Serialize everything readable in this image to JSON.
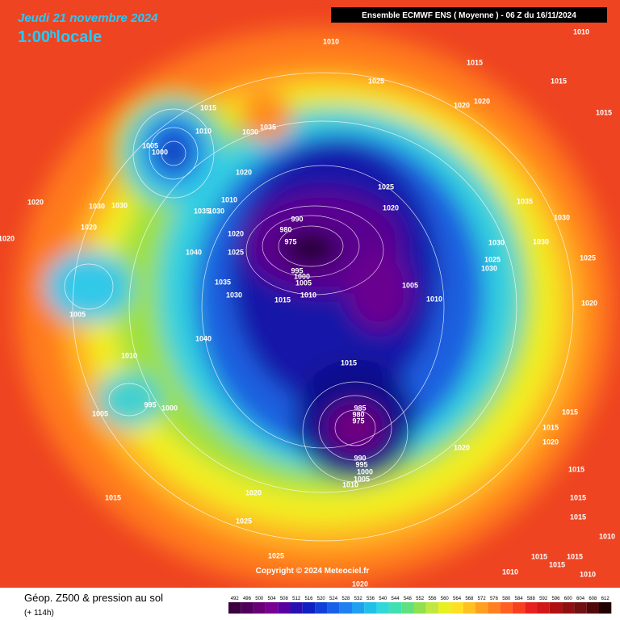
{
  "header": {
    "date": "Jeudi 21 novembre 2024",
    "time": "1:00ʰlocale",
    "run": "Ensemble ECMWF ENS  ( Moyenne )  -  06 Z du 16/11/2024"
  },
  "map": {
    "copyright": "Copyright © 2024 Meteociel.fr",
    "pressure_labels": [
      "1010",
      "1010",
      "1015",
      "1015",
      "1015",
      "1025",
      "1015",
      "1010",
      "1005",
      "1000",
      "1030",
      "1035",
      "1020",
      "1020",
      "1020",
      "1025",
      "1020",
      "1035",
      "1030",
      "1020",
      "1030",
      "1030",
      "1010",
      "1035",
      "1030",
      "1020",
      "1020",
      "990",
      "980",
      "975",
      "1020",
      "1025",
      "1040",
      "1030",
      "1030",
      "1025",
      "1025",
      "1030",
      "995",
      "1000",
      "1005",
      "1005",
      "1035",
      "1030",
      "1015",
      "1010",
      "1010",
      "1005",
      "1020",
      "1040",
      "1015",
      "1010",
      "995",
      "1000",
      "1005",
      "985",
      "980",
      "975",
      "1020",
      "990",
      "995",
      "1000",
      "1005",
      "1010",
      "1015",
      "1015",
      "1020",
      "1015",
      "1020",
      "1015",
      "1025",
      "1015",
      "1015",
      "1010",
      "1025",
      "1015",
      "1015",
      "1010",
      "1010",
      "1020",
      "1015"
    ]
  },
  "footer": {
    "title": "Géop. Z500 & pression au sol",
    "lead": "(+ 114h)",
    "scale": [
      "492",
      "496",
      "500",
      "504",
      "508",
      "512",
      "516",
      "520",
      "524",
      "528",
      "532",
      "536",
      "540",
      "544",
      "548",
      "552",
      "556",
      "560",
      "564",
      "568",
      "572",
      "576",
      "580",
      "584",
      "588",
      "592",
      "596",
      "600",
      "604",
      "608",
      "612"
    ]
  }
}
